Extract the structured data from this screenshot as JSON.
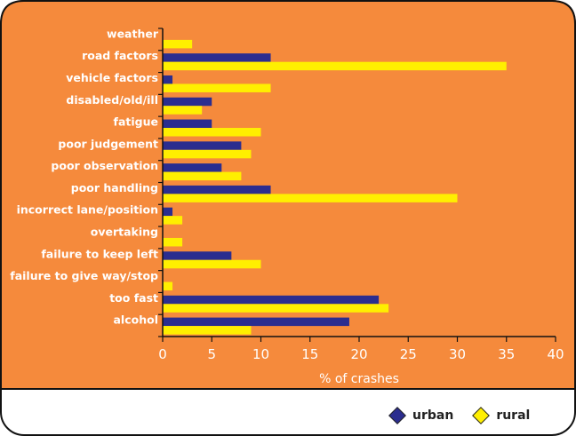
{
  "colors": {
    "background": "#F58A3C",
    "urban": "#2B2D8F",
    "rural": "#FFEF00",
    "axis": "#111111"
  },
  "chart_data": {
    "type": "bar",
    "orientation": "horizontal",
    "categories": [
      "weather",
      "road factors",
      "vehicle factors",
      "disabled/old/ill",
      "fatigue",
      "poor judgement",
      "poor observation",
      "poor handling",
      "incorrect lane/position",
      "overtaking",
      "failure to keep left",
      "failure to give way/stop",
      "too fast",
      "alcohol"
    ],
    "series": [
      {
        "name": "urban",
        "values": [
          0,
          11,
          1,
          5,
          5,
          8,
          6,
          11,
          1,
          0,
          7,
          0,
          22,
          19
        ]
      },
      {
        "name": "rural",
        "values": [
          3,
          35,
          11,
          4,
          10,
          9,
          8,
          30,
          2,
          2,
          10,
          1,
          23,
          9
        ]
      }
    ],
    "xlabel": "% of crashes",
    "xlim": [
      0,
      40
    ],
    "xticks": [
      0,
      5,
      10,
      15,
      20,
      25,
      30,
      35,
      40
    ],
    "grid": false,
    "legend_position": "bottom-right"
  }
}
